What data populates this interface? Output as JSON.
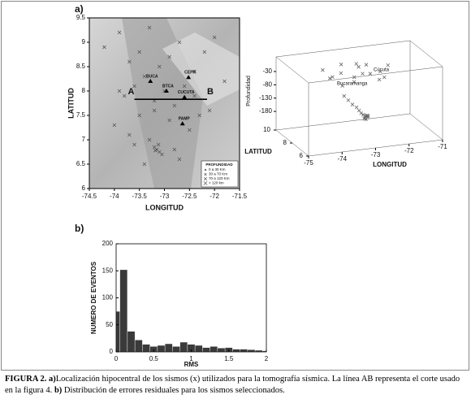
{
  "panel_labels": [
    "a)",
    "b)"
  ],
  "chart_data": [
    {
      "type": "map-scatter",
      "xlabel": "LONGITUD",
      "ylabel": "LATITUD",
      "xlim": [
        -74.5,
        -71.5
      ],
      "xticks": [
        -74.5,
        -74,
        -73.5,
        -73,
        -72.5,
        -72,
        -71.5
      ],
      "ylim": [
        6,
        9.5
      ],
      "yticks": [
        6,
        6.5,
        7,
        7.5,
        8,
        8.5,
        9,
        9.5
      ],
      "color": "#555555",
      "x": [
        -74.2,
        -73.9,
        -73.7,
        -73.5,
        -73.3,
        -73.1,
        -72.9,
        -72.7,
        -72.4,
        -72.2,
        -72.0,
        -71.8,
        -73.8,
        -73.6,
        -73.4,
        -73.2,
        -73.0,
        -72.8,
        -72.6,
        -72.3,
        -74.0,
        -73.7,
        -73.3,
        -72.9,
        -72.5,
        -73.6,
        -73.2,
        -72.8,
        -72.4,
        -73.15,
        -73.1,
        -73.2,
        -73.05,
        -73.12,
        -73.18,
        -73.4,
        -72.1,
        -73.9,
        -72.7,
        -73.5
      ],
      "y": [
        8.9,
        9.2,
        8.6,
        8.8,
        9.3,
        8.5,
        8.7,
        9.0,
        8.4,
        8.8,
        9.1,
        8.2,
        7.9,
        8.1,
        8.3,
        7.6,
        8.0,
        7.7,
        8.1,
        7.5,
        7.3,
        7.1,
        7.0,
        7.4,
        7.2,
        6.9,
        7.8,
        6.8,
        7.9,
        6.8,
        6.75,
        6.85,
        6.7,
        6.9,
        6.78,
        6.5,
        7.6,
        8.0,
        6.6,
        7.5
      ],
      "stations": {
        "names": [
          "BUCA",
          "CEPR",
          "BTCA",
          "CUCUTA",
          "PAMP"
        ],
        "x": [
          -73.28,
          -72.52,
          -72.96,
          -72.6,
          -72.64
        ],
        "y": [
          8.2,
          8.28,
          8.0,
          7.87,
          7.33
        ]
      },
      "section": {
        "labels": [
          "A",
          "B"
        ],
        "x": [
          -73.6,
          -72.15
        ],
        "y": [
          7.83,
          7.83
        ]
      },
      "legend": {
        "title": "PROFUNDIDAD",
        "entries": [
          "0 a 30 Km",
          "30 a 70 Km",
          "70 a 120 Km",
          "> 120 km"
        ]
      }
    },
    {
      "type": "scatter3d",
      "xlabel": "LONGITUD",
      "ylabel": "LATITUD",
      "zlabel": "Profundidad",
      "xlim": [
        -75,
        -71
      ],
      "xticks": [
        -75,
        -74,
        -73,
        -72,
        -71
      ],
      "ylim": [
        6,
        10
      ],
      "yticks": [
        6,
        8,
        10
      ],
      "zlim": [
        -250,
        25
      ],
      "zticks": [
        -30,
        -80,
        -130,
        -180
      ],
      "color": "#666666",
      "annotations": [
        "Cúcuta",
        "Bucaramanga"
      ],
      "x": [
        -74.0,
        -73.8,
        -73.5,
        -73.2,
        -72.9,
        -72.6,
        -72.3,
        -72.0,
        -73.7,
        -73.4,
        -73.0,
        -72.7,
        -72.4,
        -73.9,
        -73.3,
        -72.8,
        -73.6,
        -73.5,
        -73.4,
        -73.3,
        -73.25,
        -73.2,
        -73.15,
        -73.1,
        -73.12,
        -73.08,
        -73.05,
        -73.14,
        -73.1,
        -73.06,
        -73.02,
        -72.5
      ],
      "y": [
        7.5,
        8.0,
        8.2,
        7.8,
        8.5,
        8.8,
        8.3,
        8.6,
        7.2,
        7.0,
        7.6,
        7.9,
        7.4,
        8.8,
        9.0,
        9.2,
        7.4,
        7.3,
        7.2,
        7.1,
        7.0,
        6.95,
        6.9,
        6.85,
        6.8,
        6.8,
        6.75,
        6.82,
        6.78,
        6.8,
        6.85,
        7.6
      ],
      "z": [
        -10,
        -20,
        -15,
        -25,
        -8,
        -12,
        -30,
        -18,
        -35,
        -20,
        -10,
        -22,
        -28,
        -12,
        -5,
        -15,
        -80,
        -95,
        -110,
        -120,
        -130,
        -140,
        -145,
        -150,
        -155,
        -148,
        -152,
        -158,
        -160,
        -146,
        -150,
        -40
      ]
    },
    {
      "type": "histogram",
      "xlabel": "RMS",
      "ylabel": "NUMERO DE EVENTOS",
      "xlim": [
        0,
        2
      ],
      "xticks": [
        0,
        0.5,
        1,
        1.5,
        2
      ],
      "ylim": [
        0,
        200
      ],
      "yticks": [
        0,
        50,
        100,
        150,
        200
      ],
      "color": "#3a3a3a",
      "bins": [
        0,
        0.05,
        0.15,
        0.25,
        0.35,
        0.45,
        0.55,
        0.65,
        0.75,
        0.85,
        0.95,
        1.05,
        1.15,
        1.25,
        1.35,
        1.45,
        1.55,
        1.65,
        1.75,
        1.85,
        1.95,
        2.0
      ],
      "values": [
        75,
        152,
        38,
        22,
        14,
        10,
        12,
        15,
        10,
        18,
        14,
        12,
        8,
        10,
        7,
        8,
        5,
        5,
        4,
        3,
        2
      ]
    }
  ],
  "caption": {
    "label": "FIGURA 2. a)",
    "text": "Localización  hipocentral de los sismos (x) utilizados para la tomografía sísmica. La línea AB representa el corte usado en la figura 4.",
    "label2": "b)",
    "text2": " Distribución de errores residuales para los sismos seleccionados."
  }
}
